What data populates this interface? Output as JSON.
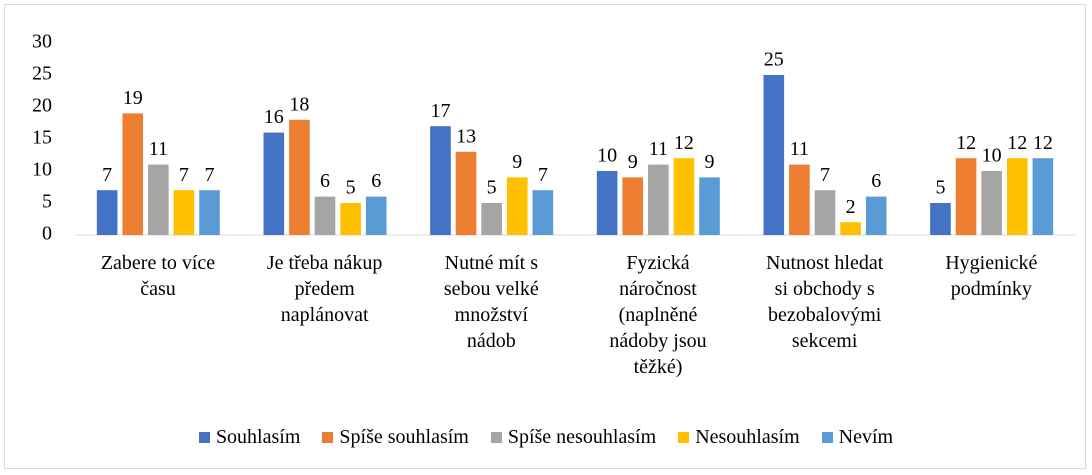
{
  "chart_data": {
    "type": "bar",
    "categories": [
      "Zabere to více\nčasu",
      "Je třeba nákup\npředem\nnaplánovat",
      "Nutné mít s\nsebou velké\nmnožství\nnádob",
      "Fyzická\nnáročnost\n(naplněné\nnádoby jsou\ntěžké)",
      "Nutnost hledat\nsi obchody s\nbezobalovými\nsekcemi",
      "Hygienické\npodmínky"
    ],
    "series": [
      {
        "name": "Souhlasím",
        "color": "#4472c4",
        "values": [
          7,
          16,
          17,
          10,
          25,
          5
        ]
      },
      {
        "name": "Spíše souhlasím",
        "color": "#ed7d31",
        "values": [
          19,
          18,
          13,
          9,
          11,
          12
        ]
      },
      {
        "name": "Spíše nesouhlasím",
        "color": "#a5a5a5",
        "values": [
          11,
          6,
          5,
          11,
          7,
          10
        ]
      },
      {
        "name": "Nesouhlasím",
        "color": "#ffc000",
        "values": [
          7,
          5,
          9,
          12,
          2,
          12
        ]
      },
      {
        "name": "Nevím",
        "color": "#5b9bd5",
        "values": [
          7,
          6,
          7,
          9,
          6,
          12
        ]
      }
    ],
    "ylim": [
      0,
      30
    ],
    "yticks": [
      0,
      5,
      10,
      15,
      20,
      25,
      30
    ],
    "grid": false,
    "legend": "bottom"
  }
}
